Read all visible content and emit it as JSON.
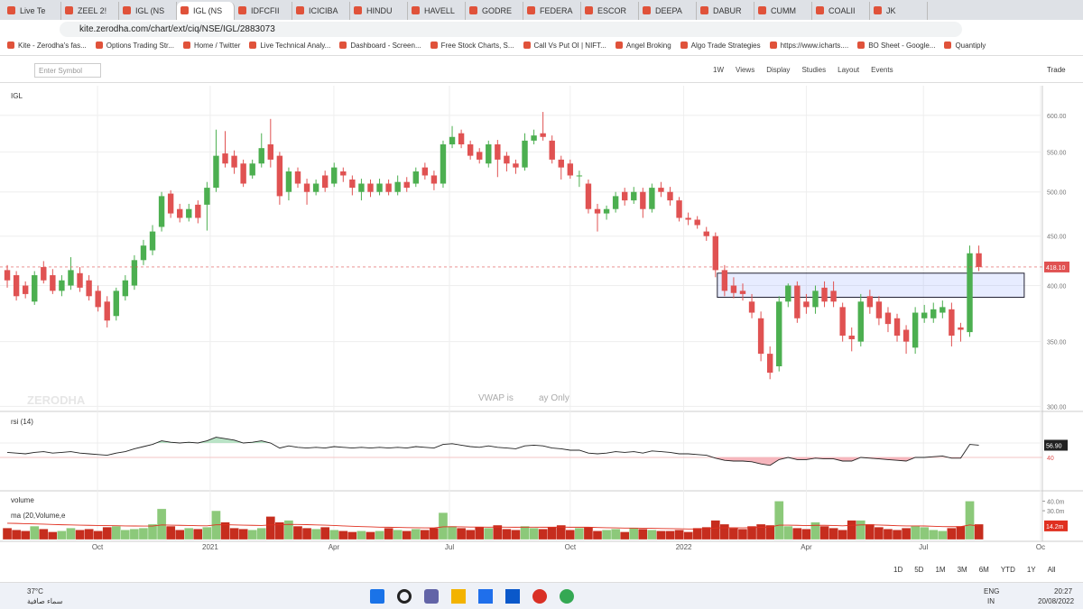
{
  "browser": {
    "tabs": [
      "Live Te",
      "ZEEL 2!",
      "IGL (NS",
      "IGL (NS",
      "IDFCFII",
      "ICICIBA",
      "HINDU",
      "HAVELL",
      "GODRE",
      "FEDERA",
      "ESCOR",
      "DEEPA",
      "DABUR",
      "CUMM",
      "COALII",
      "JK"
    ],
    "url": "kite.zerodha.com/chart/ext/ciq/NSE/IGL/2883073",
    "bookmarks": [
      "Kite - Zerodha's fas...",
      "Options Trading Str...",
      "Home / Twitter",
      "Live Technical Analy...",
      "Dashboard - Screen...",
      "Free Stock Charts, S...",
      "Call Vs Put OI | NIFT...",
      "Angel Broking",
      "Algo Trade Strategies",
      "https://www.icharts....",
      "BO Sheet - Google...",
      "Quantiply"
    ]
  },
  "toolbar": {
    "search_placeholder": "Enter Symbol",
    "items": [
      "1W",
      "Views",
      "Display",
      "Studies",
      "Layout",
      "Events"
    ],
    "trade": "Trade"
  },
  "chart_data": {
    "type": "candlestick",
    "title": "IGL",
    "watermark": "ZERODHA",
    "notice": [
      "VWAP is",
      "ay Only"
    ],
    "up_color": "#4caf50",
    "down_color": "#e05252",
    "log_scale": true,
    "xlim": [
      -0.8,
      114
    ],
    "ylim": [
      297,
      644
    ],
    "xticks": [
      {
        "value": 9.94,
        "label": "Oct"
      },
      {
        "value": 22.35,
        "label": "2021"
      },
      {
        "value": 35.97,
        "label": "Apr"
      },
      {
        "value": 48.7,
        "label": "Jul"
      },
      {
        "value": 62,
        "label": "Oct"
      },
      {
        "value": 74.5,
        "label": "2022"
      },
      {
        "value": 88,
        "label": "Apr"
      },
      {
        "value": 100.9,
        "label": "Jul"
      },
      {
        "value": 113.8,
        "label": "Oc"
      }
    ],
    "yticks": [
      {
        "value": 600,
        "label": "600.00"
      },
      {
        "value": 550,
        "label": "550.00"
      },
      {
        "value": 500,
        "label": "500.00"
      },
      {
        "value": 450,
        "label": "450.00"
      },
      {
        "value": 400,
        "label": "400.00"
      },
      {
        "value": 350,
        "label": "350.00"
      },
      {
        "value": 300,
        "label": "300.00"
      }
    ],
    "last_value_label": "418.10",
    "zone": {
      "from": 78.2,
      "to": 112,
      "top": 412,
      "bottom": 389
    },
    "candles": [
      [
        415,
        420,
        398,
        405
      ],
      [
        410,
        414,
        386,
        390
      ],
      [
        400,
        404,
        388,
        392
      ],
      [
        385,
        414,
        382,
        410
      ],
      [
        418,
        424,
        402,
        405
      ],
      [
        410,
        416,
        392,
        395
      ],
      [
        395,
        410,
        390,
        405
      ],
      [
        400,
        428,
        396,
        415
      ],
      [
        412,
        418,
        394,
        398
      ],
      [
        405,
        410,
        386,
        390
      ],
      [
        395,
        400,
        376,
        380
      ],
      [
        385,
        390,
        362,
        368
      ],
      [
        372,
        398,
        368,
        395
      ],
      [
        390,
        410,
        386,
        405
      ],
      [
        400,
        430,
        396,
        425
      ],
      [
        425,
        446,
        420,
        440
      ],
      [
        435,
        462,
        430,
        455
      ],
      [
        460,
        500,
        455,
        495
      ],
      [
        498,
        502,
        470,
        475
      ],
      [
        480,
        486,
        465,
        470
      ],
      [
        470,
        486,
        466,
        480
      ],
      [
        485,
        490,
        464,
        470
      ],
      [
        485,
        512,
        456,
        505
      ],
      [
        505,
        580,
        500,
        545
      ],
      [
        548,
        578,
        530,
        535
      ],
      [
        545,
        552,
        522,
        530
      ],
      [
        535,
        540,
        506,
        510
      ],
      [
        520,
        540,
        516,
        535
      ],
      [
        535,
        575,
        530,
        555
      ],
      [
        560,
        595,
        530,
        540
      ],
      [
        545,
        550,
        485,
        495
      ],
      [
        500,
        530,
        490,
        525
      ],
      [
        525,
        530,
        505,
        510
      ],
      [
        510,
        516,
        485,
        500
      ],
      [
        500,
        515,
        496,
        510
      ],
      [
        520,
        526,
        500,
        505
      ],
      [
        510,
        536,
        506,
        530
      ],
      [
        525,
        530,
        512,
        520
      ],
      [
        515,
        520,
        496,
        505
      ],
      [
        500,
        516,
        490,
        510
      ],
      [
        510,
        515,
        494,
        500
      ],
      [
        500,
        516,
        496,
        510
      ],
      [
        510,
        515,
        496,
        500
      ],
      [
        500,
        520,
        496,
        512
      ],
      [
        512,
        518,
        500,
        505
      ],
      [
        510,
        530,
        506,
        525
      ],
      [
        530,
        536,
        515,
        520
      ],
      [
        520,
        526,
        502,
        510
      ],
      [
        510,
        565,
        505,
        560
      ],
      [
        560,
        585,
        555,
        570
      ],
      [
        575,
        580,
        555,
        560
      ],
      [
        560,
        565,
        540,
        545
      ],
      [
        550,
        555,
        535,
        540
      ],
      [
        535,
        565,
        530,
        560
      ],
      [
        560,
        566,
        518,
        540
      ],
      [
        545,
        550,
        525,
        535
      ],
      [
        535,
        540,
        522,
        530
      ],
      [
        530,
        575,
        526,
        565
      ],
      [
        565,
        580,
        560,
        572
      ],
      [
        575,
        605,
        565,
        570
      ],
      [
        565,
        572,
        535,
        540
      ],
      [
        540,
        545,
        515,
        530
      ],
      [
        535,
        540,
        516,
        520
      ],
      [
        520,
        526,
        506,
        520
      ],
      [
        510,
        515,
        475,
        480
      ],
      [
        480,
        486,
        455,
        475
      ],
      [
        475,
        484,
        468,
        480
      ],
      [
        480,
        500,
        476,
        495
      ],
      [
        500,
        505,
        484,
        490
      ],
      [
        490,
        506,
        486,
        500
      ],
      [
        500,
        505,
        470,
        480
      ],
      [
        480,
        510,
        476,
        505
      ],
      [
        505,
        512,
        494,
        500
      ],
      [
        500,
        506,
        484,
        490
      ],
      [
        490,
        494,
        466,
        470
      ],
      [
        470,
        476,
        462,
        468
      ],
      [
        468,
        472,
        458,
        462
      ],
      [
        455,
        460,
        445,
        450
      ],
      [
        450,
        454,
        408,
        415
      ],
      [
        415,
        420,
        390,
        395
      ],
      [
        400,
        408,
        388,
        393
      ],
      [
        395,
        402,
        386,
        392
      ],
      [
        385,
        392,
        370,
        375
      ],
      [
        370,
        376,
        334,
        340
      ],
      [
        340,
        346,
        320,
        325
      ],
      [
        330,
        390,
        326,
        385
      ],
      [
        385,
        402,
        380,
        400
      ],
      [
        400,
        404,
        366,
        370
      ],
      [
        385,
        392,
        374,
        380
      ],
      [
        380,
        400,
        374,
        395
      ],
      [
        398,
        404,
        380,
        385
      ],
      [
        395,
        404,
        380,
        385
      ],
      [
        380,
        384,
        350,
        355
      ],
      [
        355,
        362,
        342,
        352
      ],
      [
        350,
        392,
        346,
        385
      ],
      [
        390,
        396,
        374,
        380
      ],
      [
        385,
        390,
        364,
        370
      ],
      [
        375,
        380,
        358,
        365
      ],
      [
        370,
        374,
        350,
        355
      ],
      [
        360,
        364,
        340,
        350
      ],
      [
        345,
        380,
        340,
        375
      ],
      [
        370,
        382,
        366,
        375
      ],
      [
        370,
        384,
        366,
        378
      ],
      [
        375,
        386,
        370,
        380
      ],
      [
        378,
        384,
        346,
        355
      ],
      [
        362,
        366,
        350,
        360
      ],
      [
        358,
        440,
        354,
        432
      ],
      [
        432,
        440,
        414,
        418.1
      ]
    ]
  },
  "rsi": {
    "type": "line",
    "title": "rsi (14)",
    "color": "#222",
    "ylim": [
      0,
      100
    ],
    "upper_band": 60,
    "yticks": [
      40
    ],
    "last_value_label": "56.90",
    "values": [
      47,
      46,
      45,
      47,
      48,
      46,
      47,
      48,
      46,
      45,
      44,
      43,
      46,
      48,
      52,
      55,
      58,
      63,
      61,
      60,
      61,
      60,
      63,
      68,
      66,
      64,
      60,
      61,
      63,
      60,
      53,
      56,
      54,
      53,
      54,
      53,
      55,
      54,
      53,
      54,
      53,
      54,
      53,
      54,
      53,
      55,
      54,
      53,
      58,
      59,
      57,
      55,
      54,
      56,
      54,
      53,
      52,
      56,
      57,
      56,
      53,
      52,
      50,
      50,
      46,
      45,
      46,
      48,
      47,
      48,
      46,
      49,
      48,
      47,
      45,
      45,
      44,
      43,
      39,
      36,
      35,
      35,
      34,
      31,
      29,
      37,
      40,
      37,
      37,
      39,
      38,
      38,
      35,
      35,
      40,
      39,
      38,
      37,
      36,
      35,
      40,
      40,
      41,
      42,
      39,
      39,
      58,
      56.9
    ]
  },
  "volume": {
    "type": "bar",
    "title": "volume",
    "up_color": "#8cc97a",
    "down_color": "#c62d1e",
    "ylim": [
      0,
      47
    ],
    "yticks": [
      {
        "value": 40,
        "label": "40.0m"
      },
      {
        "value": 30,
        "label": "30.0m"
      }
    ],
    "values": [
      12,
      10,
      9,
      14,
      11,
      8,
      9,
      12,
      10,
      11,
      9,
      13,
      14,
      10,
      11,
      12,
      16,
      32,
      14,
      10,
      12,
      11,
      13,
      30,
      18,
      12,
      11,
      10,
      12,
      24,
      18,
      20,
      14,
      12,
      11,
      13,
      10,
      9,
      8,
      9,
      8,
      9,
      12,
      10,
      9,
      11,
      10,
      12,
      28,
      14,
      12,
      10,
      13,
      12,
      15,
      11,
      10,
      14,
      12,
      11,
      13,
      15,
      10,
      12,
      13,
      9,
      10,
      11,
      8,
      12,
      11,
      10,
      9,
      9,
      10,
      8,
      12,
      13,
      20,
      16,
      12,
      11,
      14,
      16,
      15,
      40,
      14,
      12,
      11,
      18,
      14,
      12,
      10,
      20,
      20,
      16,
      13,
      11,
      10,
      12,
      14,
      13,
      10,
      9,
      12,
      14,
      40,
      16
    ],
    "ma": {
      "name": "ma (20,Volume,e",
      "color": "#e03020",
      "last_value_label": "14.2m",
      "values": [
        17,
        16.8,
        16.5,
        16.3,
        16,
        15.7,
        15.4,
        15.2,
        15,
        14.8,
        14.6,
        14.5,
        14.4,
        14.2,
        14.1,
        14,
        14,
        15.2,
        15,
        14.8,
        14.6,
        14.4,
        14.3,
        15.3,
        15.4,
        15.2,
        15,
        14.8,
        14.6,
        15.2,
        15.4,
        15.8,
        15.7,
        15.5,
        15.2,
        15,
        14.6,
        14.2,
        13.8,
        13.5,
        13.2,
        12.9,
        12.8,
        12.6,
        12.4,
        12.3,
        12.2,
        12.1,
        13.2,
        13.3,
        13.2,
        13,
        13,
        12.9,
        13,
        12.9,
        12.8,
        12.9,
        12.9,
        12.8,
        12.8,
        13,
        12.8,
        12.8,
        12.8,
        12.5,
        12.3,
        12.2,
        11.9,
        11.9,
        11.8,
        11.7,
        11.5,
        11.3,
        11.2,
        11,
        11,
        11.2,
        12,
        12.3,
        12.3,
        12.2,
        12.4,
        12.7,
        13,
        15,
        15,
        14.8,
        14.5,
        14.8,
        14.8,
        14.6,
        14.3,
        14.8,
        15.2,
        15.3,
        15.1,
        14.8,
        14.4,
        14.2,
        14.2,
        14.1,
        13.8,
        13.5,
        13.4,
        13.4,
        15.2,
        14.2
      ]
    }
  },
  "range_buttons": [
    "1D",
    "5D",
    "1M",
    "3M",
    "6M",
    "YTD",
    "1Y",
    "All"
  ],
  "taskbar": {
    "temp": "37°C",
    "weather": "سماء صافية",
    "lang": "ENG",
    "region": "IN",
    "time": "20:27",
    "date": "20/08/2022"
  }
}
